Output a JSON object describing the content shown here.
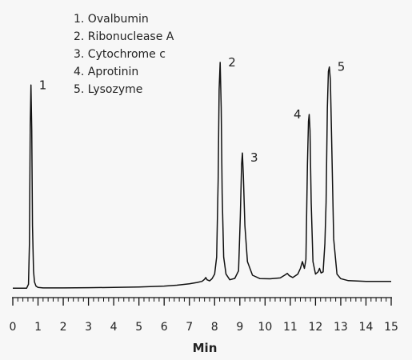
{
  "chart_data": {
    "type": "line",
    "title": "",
    "xlabel": "Min",
    "ylabel": "",
    "xlim": [
      0,
      15
    ],
    "ylim": [
      0,
      100
    ],
    "xticks": [
      0,
      1,
      2,
      3,
      4,
      5,
      6,
      7,
      8,
      9,
      10,
      11,
      12,
      13,
      14,
      15
    ],
    "xtick_labels": [
      "0",
      "1",
      "2",
      "3",
      "4",
      "5",
      "6",
      "7",
      "8",
      "9",
      "10",
      "11",
      "12",
      "13",
      "14",
      "15"
    ],
    "minor_ticks_per_unit": 5,
    "grid": false,
    "legend": {
      "placement": "top-left",
      "entries": [
        "1. Ovalbumin",
        "2. Ribonuclease A",
        "3. Cytochrome c",
        "4. Aprotinin",
        "5. Lysozyme"
      ]
    },
    "peaks": [
      {
        "label": "1",
        "time": 0.72,
        "height": 90
      },
      {
        "label": "2",
        "time": 8.22,
        "height": 100
      },
      {
        "label": "3",
        "time": 9.1,
        "height": 60
      },
      {
        "label": "4",
        "time": 11.75,
        "height": 77
      },
      {
        "label": "5",
        "time": 12.55,
        "height": 98
      }
    ],
    "trace_color": "#111111",
    "series": [
      {
        "x": [
          0,
          0.55,
          0.62,
          0.66,
          0.69,
          0.72,
          0.75,
          0.78,
          0.82,
          0.86,
          0.92,
          1.0,
          1.2,
          2.0,
          3.0,
          4.0,
          5.0,
          6.0,
          6.5,
          7.0,
          7.3,
          7.5,
          7.6,
          7.65,
          7.7,
          7.8,
          7.9,
          8.0,
          8.08,
          8.14,
          8.18,
          8.22,
          8.26,
          8.3,
          8.36,
          8.45,
          8.6,
          8.8,
          8.95,
          9.02,
          9.07,
          9.1,
          9.14,
          9.2,
          9.3,
          9.5,
          9.8,
          10.2,
          10.6,
          10.8,
          10.88,
          10.96,
          11.1,
          11.3,
          11.4,
          11.48,
          11.56,
          11.62,
          11.68,
          11.72,
          11.75,
          11.78,
          11.83,
          11.9,
          12.0,
          12.1,
          12.16,
          12.22,
          12.3,
          12.37,
          12.42,
          12.47,
          12.51,
          12.55,
          12.59,
          12.64,
          12.72,
          12.85,
          13.0,
          13.3,
          14.0,
          15.0
        ],
        "y": [
          0.3,
          0.3,
          2,
          20,
          72,
          90,
          70,
          28,
          8,
          3,
          1.2,
          0.6,
          0.4,
          0.4,
          0.5,
          0.6,
          0.8,
          1.2,
          1.6,
          2.2,
          2.8,
          3.3,
          4.2,
          5.0,
          4.0,
          3.5,
          4.5,
          6.5,
          14,
          48,
          88,
          100,
          80,
          42,
          14,
          6.5,
          4.0,
          4.6,
          8,
          32,
          55,
          60,
          50,
          28,
          12,
          6.0,
          4.5,
          4.4,
          4.8,
          6.2,
          6.8,
          5.8,
          5.0,
          6.5,
          9,
          12,
          9,
          13,
          55,
          74,
          77,
          70,
          38,
          12,
          6.5,
          7.5,
          9,
          7.0,
          7.5,
          20,
          38,
          80,
          96,
          98,
          92,
          65,
          22,
          6.5,
          4.5,
          3.6,
          3.3,
          3.3
        ]
      }
    ]
  }
}
